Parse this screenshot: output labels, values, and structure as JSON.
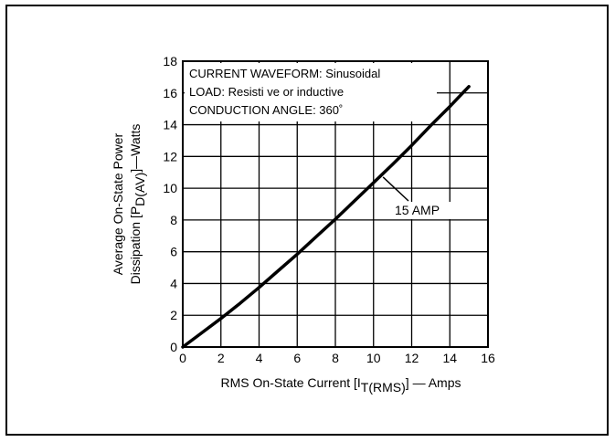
{
  "chart_data": {
    "type": "line",
    "title": "",
    "xlabel": {
      "main": "RMS On-State Current [I",
      "sub": "T(RMS)",
      "tail": "] — Amps"
    },
    "ylabel": {
      "line1": "Average On-State Power",
      "line2_main": "Dissipation [P",
      "line2_sub": "D(AV)",
      "line2_tail": "]—Watts"
    },
    "xlim": [
      0,
      16
    ],
    "ylim": [
      0,
      18
    ],
    "xticks": [
      0,
      2,
      4,
      6,
      8,
      10,
      12,
      14,
      16
    ],
    "yticks": [
      0,
      2,
      4,
      6,
      8,
      10,
      12,
      14,
      16,
      18
    ],
    "grid": true,
    "annotation": [
      "CURRENT WAVEFORM: Sinusoidal",
      "LOAD: Resisti ve or inductive",
      "CONDUCTION ANGLE: 360˚"
    ],
    "series": [
      {
        "name": "15 AMP",
        "x": [
          0,
          1,
          2,
          3,
          4,
          5,
          6,
          7,
          8,
          9,
          10,
          11,
          12,
          13,
          14,
          15
        ],
        "y": [
          0,
          0.9,
          1.8,
          2.75,
          3.75,
          4.8,
          5.85,
          6.95,
          8.05,
          9.2,
          10.35,
          11.5,
          12.7,
          13.95,
          15.15,
          16.4
        ]
      }
    ]
  }
}
